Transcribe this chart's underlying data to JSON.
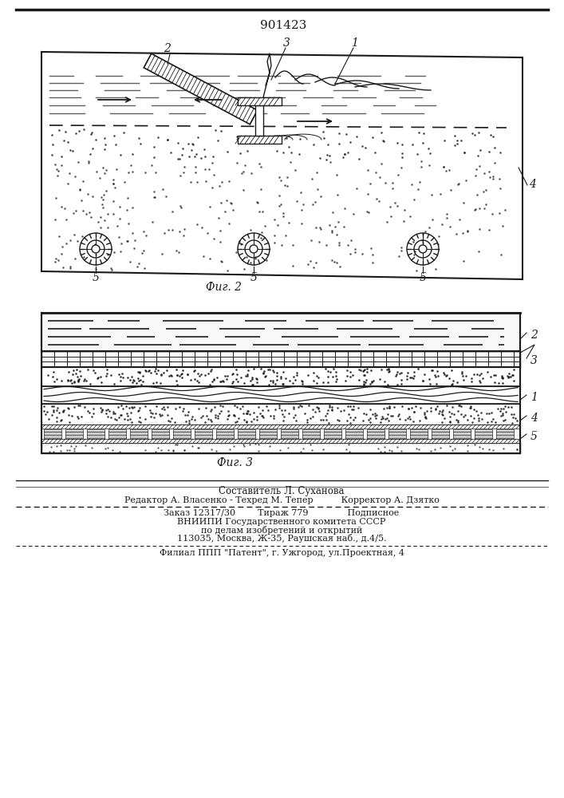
{
  "title": "901423",
  "fig2_label": "Фиг. 2",
  "fig3_label": "Фиг. 3",
  "bg_color": "#ffffff",
  "line_color": "#1a1a1a",
  "footer_line1": "Составитель Л. Суханова",
  "footer_line2": "Редактор А. Власенко - Техред М. Тепер          Корректор А. Дзятко",
  "footer_line3": "Заказ 12317/30        Тираж 779              Подписное",
  "footer_line4": "ВНИИПИ Государственного комитета СССР",
  "footer_line5": "по делам изобретений и открытий",
  "footer_line6": "113035, Москва, Ж-35, Раушская наб., д.4/5.",
  "footer_line7": "Филиал ППП \"Патент\", г. Ужгород, ул.Проектная, 4"
}
